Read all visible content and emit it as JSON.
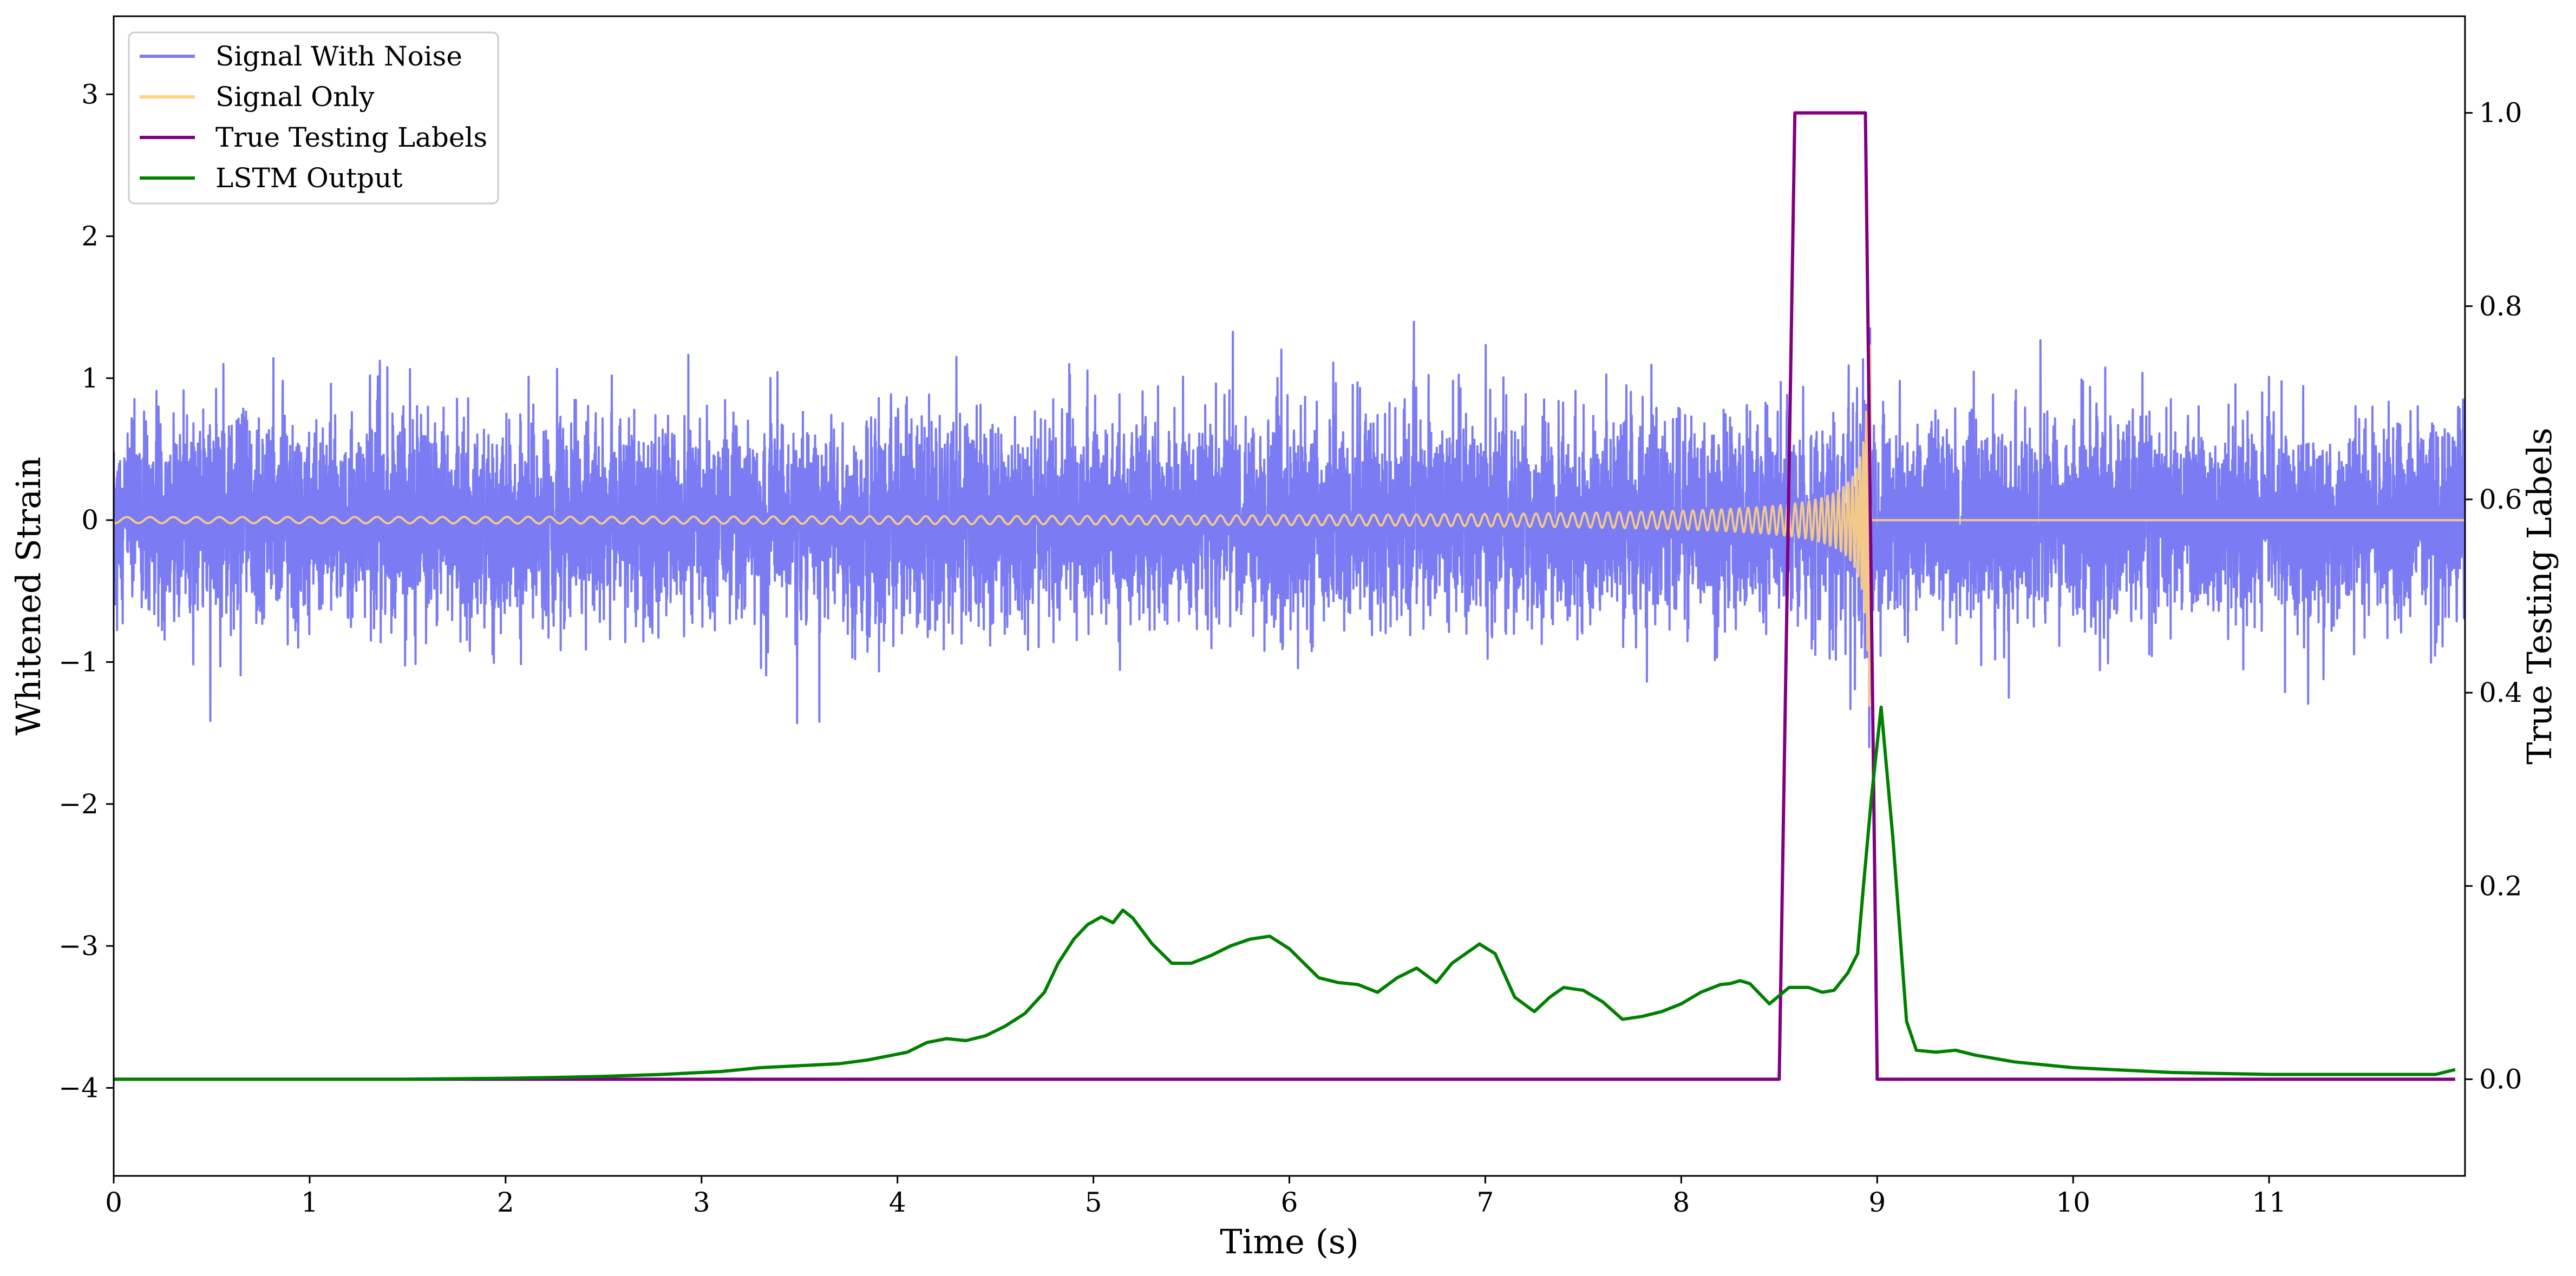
{
  "chart_data": {
    "type": "line",
    "xlabel": "Time (s)",
    "ylabel_left": "Whitened Strain",
    "ylabel_right": "True Testing Labels",
    "xlim": [
      0,
      12.0
    ],
    "ylim_left": [
      -4.62,
      3.55
    ],
    "ylim_right": [
      -0.1,
      1.1
    ],
    "xticks": [
      0,
      1,
      2,
      3,
      4,
      5,
      6,
      7,
      8,
      9,
      10,
      11
    ],
    "xtick_labels": [
      "0",
      "1",
      "2",
      "3",
      "4",
      "5",
      "6",
      "7",
      "8",
      "9",
      "10",
      "11"
    ],
    "yticks_left": [
      -4,
      -3,
      -2,
      -1,
      0,
      1,
      2,
      3
    ],
    "ytick_labels_left": [
      "−4",
      "−3",
      "−2",
      "−1",
      "0",
      "1",
      "2",
      "3"
    ],
    "yticks_right": [
      0.0,
      0.2,
      0.4,
      0.6,
      0.8,
      1.0
    ],
    "ytick_labels_right": [
      "0.0",
      "0.2",
      "0.4",
      "0.6",
      "0.8",
      "1.0"
    ],
    "grid": false,
    "legend": {
      "placement": "upper-left",
      "entries": [
        {
          "label": "Signal With Noise",
          "color": "#7b7bf3"
        },
        {
          "label": "Signal Only",
          "color": "#ffd27f"
        },
        {
          "label": "True Testing Labels",
          "color": "#800080"
        },
        {
          "label": "LSTM Output",
          "color": "#008000"
        }
      ]
    },
    "series": [
      {
        "name": "Signal With Noise",
        "axis": "left",
        "color": "#7b7bf3",
        "kind": "noise",
        "x_range": [
          0,
          12.0
        ],
        "amplitude_std": 0.35,
        "approx_min": -1.6,
        "approx_max": 1.63
      },
      {
        "name": "Signal Only",
        "axis": "left",
        "color": "#ffd27f",
        "kind": "chirp",
        "x_range": [
          0,
          8.97
        ],
        "amplitude_start": 0.01,
        "amplitude_peak": 1.45,
        "merger_time": 8.97
      },
      {
        "name": "True Testing Labels",
        "axis": "right",
        "color": "#800080",
        "x": [
          0,
          8.5,
          8.58,
          8.94,
          9.0,
          11.95
        ],
        "y": [
          0.0,
          0.0,
          1.0,
          1.0,
          0.0,
          0.0
        ]
      },
      {
        "name": "LSTM Output",
        "axis": "right",
        "color": "#008000",
        "x": [
          0,
          1.0,
          1.5,
          2.0,
          2.3,
          2.5,
          2.8,
          3.0,
          3.1,
          3.2,
          3.3,
          3.5,
          3.7,
          3.85,
          3.95,
          4.05,
          4.15,
          4.25,
          4.35,
          4.45,
          4.55,
          4.65,
          4.75,
          4.82,
          4.9,
          4.97,
          5.04,
          5.1,
          5.15,
          5.2,
          5.3,
          5.4,
          5.5,
          5.6,
          5.7,
          5.8,
          5.9,
          6.0,
          6.15,
          6.25,
          6.35,
          6.45,
          6.55,
          6.65,
          6.75,
          6.83,
          6.9,
          6.97,
          7.05,
          7.15,
          7.25,
          7.33,
          7.4,
          7.5,
          7.6,
          7.7,
          7.8,
          7.9,
          8.0,
          8.1,
          8.2,
          8.25,
          8.3,
          8.35,
          8.45,
          8.55,
          8.65,
          8.72,
          8.78,
          8.85,
          8.9,
          8.93,
          8.97,
          9.02,
          9.08,
          9.15,
          9.2,
          9.3,
          9.4,
          9.5,
          9.7,
          10.0,
          10.5,
          11.0,
          11.5,
          11.85,
          11.95
        ],
        "y": [
          0.0,
          0.0,
          0.0,
          0.001,
          0.002,
          0.003,
          0.005,
          0.007,
          0.008,
          0.01,
          0.012,
          0.014,
          0.016,
          0.02,
          0.024,
          0.028,
          0.038,
          0.042,
          0.04,
          0.045,
          0.055,
          0.068,
          0.09,
          0.12,
          0.145,
          0.16,
          0.168,
          0.162,
          0.175,
          0.167,
          0.14,
          0.12,
          0.12,
          0.128,
          0.138,
          0.145,
          0.148,
          0.135,
          0.105,
          0.1,
          0.098,
          0.09,
          0.105,
          0.115,
          0.1,
          0.12,
          0.13,
          0.14,
          0.13,
          0.085,
          0.07,
          0.085,
          0.095,
          0.092,
          0.08,
          0.062,
          0.065,
          0.07,
          0.078,
          0.09,
          0.098,
          0.099,
          0.102,
          0.099,
          0.078,
          0.095,
          0.095,
          0.09,
          0.092,
          0.11,
          0.13,
          0.2,
          0.29,
          0.385,
          0.25,
          0.06,
          0.03,
          0.028,
          0.03,
          0.025,
          0.018,
          0.012,
          0.007,
          0.005,
          0.005,
          0.005,
          0.01
        ]
      }
    ]
  }
}
